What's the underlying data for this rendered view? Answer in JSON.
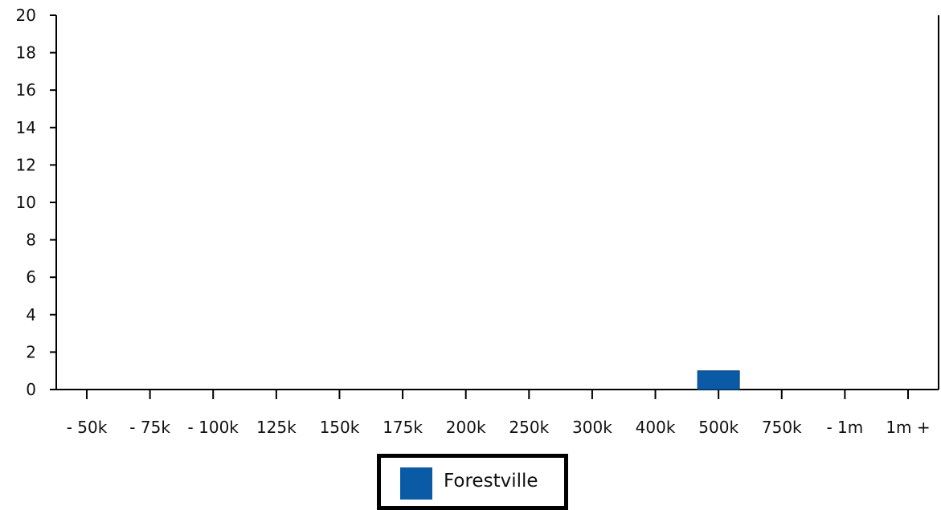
{
  "chart_data": {
    "type": "bar",
    "categories": [
      "- 50k",
      "- 75k",
      "- 100k",
      "125k",
      "150k",
      "175k",
      "200k",
      "250k",
      "300k",
      "400k",
      "500k",
      "750k",
      "- 1m",
      "1m +"
    ],
    "series": [
      {
        "name": "Forestville",
        "color": "#0b5aa6",
        "values": [
          0,
          0,
          0,
          0,
          0,
          0,
          0,
          0,
          0,
          0,
          1,
          0,
          0,
          0
        ]
      }
    ],
    "title": "",
    "xlabel": "",
    "ylabel": "",
    "ylim": [
      0,
      20
    ],
    "yticks": [
      0,
      2,
      4,
      6,
      8,
      10,
      12,
      14,
      16,
      18,
      20
    ],
    "xtick_labels": [
      "- 50k",
      "- 75k",
      "- 100k",
      "125k",
      "150k",
      "175k",
      "200k",
      "250k",
      "300k",
      "400k",
      "500k",
      "750k",
      "- 1m",
      "1m +"
    ],
    "grid": false,
    "legend_position": "bottom-center"
  },
  "legend": {
    "label": "Forestville",
    "swatch_color": "#0b5aa6"
  }
}
